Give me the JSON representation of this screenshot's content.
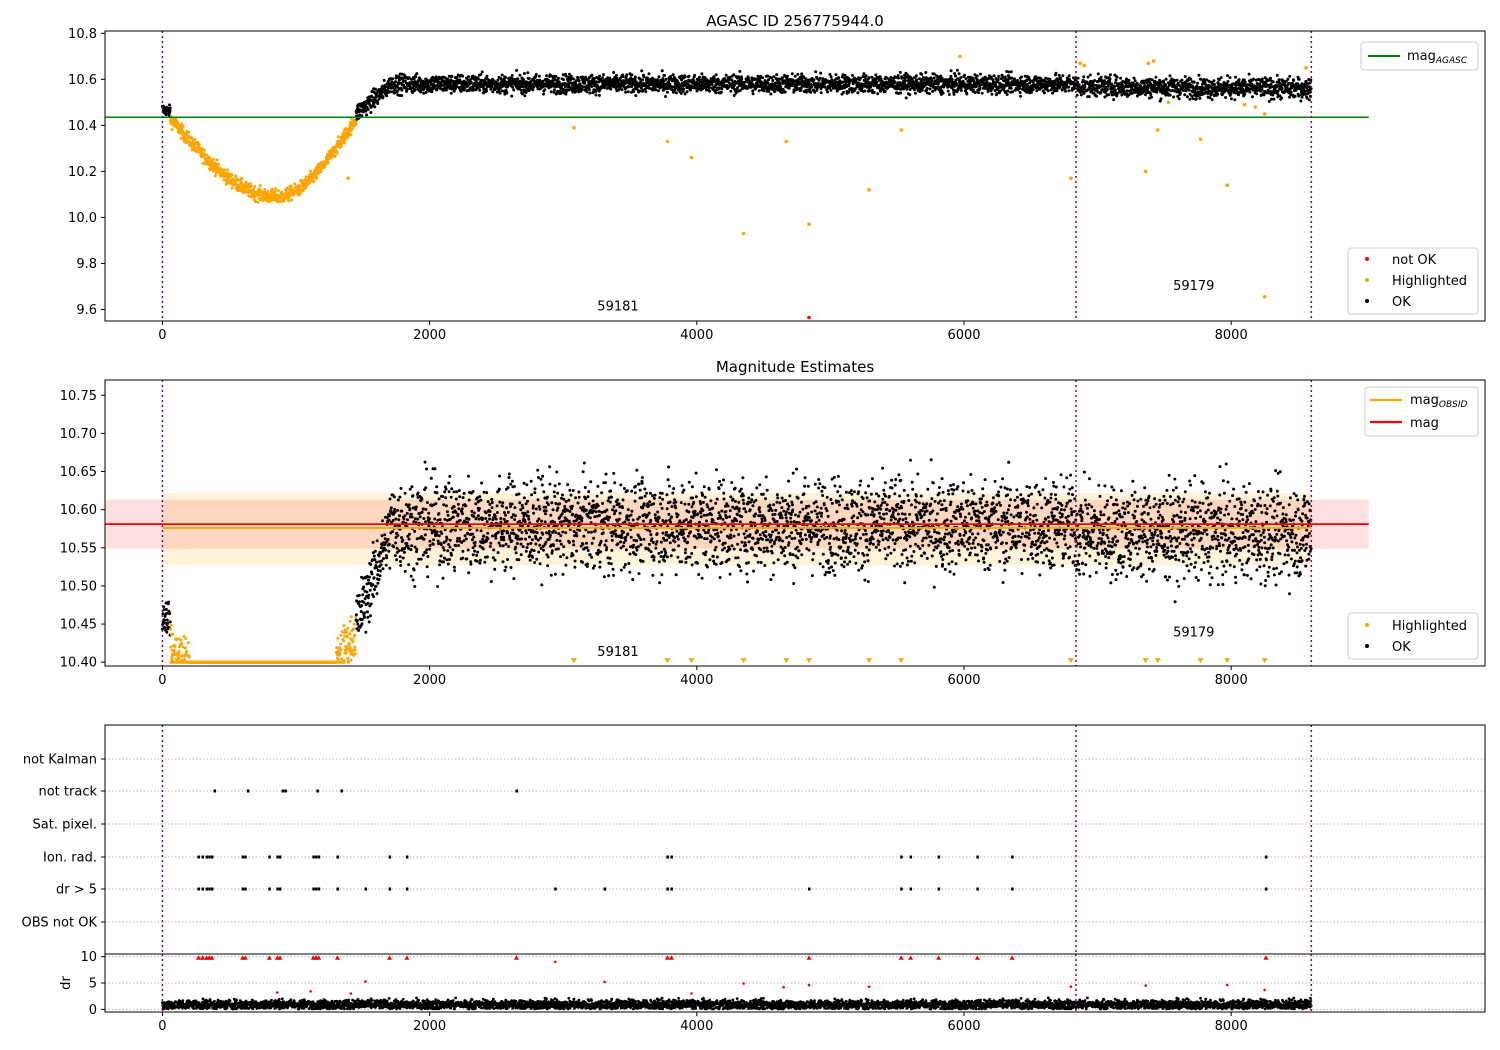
{
  "chart_data": [
    {
      "type": "scatter",
      "title": "AGASC ID 256775944.0",
      "xlim": [
        -430,
        9900
      ],
      "ylim": [
        9.55,
        10.81
      ],
      "xticks": [
        0,
        2000,
        4000,
        6000,
        8000
      ],
      "yticks": [
        9.6,
        9.8,
        10.0,
        10.2,
        10.4,
        10.6,
        10.8
      ],
      "vlines": [
        0,
        6838,
        8600
      ],
      "hline": {
        "name": "mag",
        "subscript": "AGASC",
        "value": 10.435,
        "x_end": 9030,
        "color": "#008000"
      },
      "obs_labels": [
        {
          "text": "59181",
          "x": 3410,
          "y": 9.595
        },
        {
          "text": "59179",
          "x": 7720,
          "y": 9.685
        }
      ],
      "legend_line": {
        "label": "mag",
        "sub": "AGASC"
      },
      "legend_points": [
        {
          "label": "not OK",
          "color": "#ff0000"
        },
        {
          "label": "Highlighted",
          "color": "#ffa500"
        },
        {
          "label": "OK",
          "color": "#000000"
        }
      ],
      "segments": [
        {
          "x0": 0,
          "x1": 60,
          "y0": 10.47,
          "y1": 10.46,
          "noise": 0.012,
          "color": "#000000"
        },
        {
          "x0": 60,
          "x1": 850,
          "y0": 10.43,
          "y1": 10.09,
          "noise": 0.015,
          "curve": "down",
          "color": "#ffa500"
        },
        {
          "x0": 850,
          "x1": 1450,
          "y0": 10.09,
          "y1": 10.43,
          "noise": 0.015,
          "curve": "up",
          "color": "#ffa500"
        },
        {
          "x0": 1450,
          "x1": 1700,
          "y0": 10.45,
          "y1": 10.57,
          "noise": 0.02,
          "color": "#000000"
        },
        {
          "x0": 1700,
          "x1": 6838,
          "y0": 10.58,
          "y1": 10.58,
          "noise": 0.02,
          "color": "#000000"
        },
        {
          "x0": 6838,
          "x1": 8600,
          "y0": 10.57,
          "y1": 10.56,
          "noise": 0.022,
          "color": "#000000"
        }
      ],
      "outliers": [
        {
          "x": 3080,
          "y": 10.39,
          "color": "#ffa500"
        },
        {
          "x": 3780,
          "y": 10.33,
          "color": "#ffa500"
        },
        {
          "x": 3960,
          "y": 10.26,
          "color": "#ffa500"
        },
        {
          "x": 4350,
          "y": 9.93,
          "color": "#ffa500"
        },
        {
          "x": 4670,
          "y": 10.33,
          "color": "#ffa500"
        },
        {
          "x": 4840,
          "y": 9.97,
          "color": "#ffa500"
        },
        {
          "x": 4840,
          "y": 9.565,
          "color": "#ff0000"
        },
        {
          "x": 5290,
          "y": 10.12,
          "color": "#ffa500"
        },
        {
          "x": 5530,
          "y": 10.38,
          "color": "#ffa500"
        },
        {
          "x": 1390,
          "y": 10.17,
          "color": "#ffa500"
        },
        {
          "x": 5970,
          "y": 10.7,
          "color": "#ffa500"
        },
        {
          "x": 6800,
          "y": 10.17,
          "color": "#ffa500"
        },
        {
          "x": 6870,
          "y": 10.67,
          "color": "#ffa500"
        },
        {
          "x": 6900,
          "y": 10.66,
          "color": "#ffa500"
        },
        {
          "x": 7360,
          "y": 10.2,
          "color": "#ffa500"
        },
        {
          "x": 7380,
          "y": 10.67,
          "color": "#ffa500"
        },
        {
          "x": 7420,
          "y": 10.68,
          "color": "#ffa500"
        },
        {
          "x": 7450,
          "y": 10.38,
          "color": "#ffa500"
        },
        {
          "x": 7530,
          "y": 10.5,
          "color": "#ffa500"
        },
        {
          "x": 7770,
          "y": 10.34,
          "color": "#ffa500"
        },
        {
          "x": 7970,
          "y": 10.14,
          "color": "#ffa500"
        },
        {
          "x": 8100,
          "y": 10.49,
          "color": "#ffa500"
        },
        {
          "x": 8180,
          "y": 10.48,
          "color": "#ffa500"
        },
        {
          "x": 8250,
          "y": 9.655,
          "color": "#ffa500"
        },
        {
          "x": 8250,
          "y": 10.45,
          "color": "#ffa500"
        },
        {
          "x": 8560,
          "y": 10.65,
          "color": "#ffa500"
        }
      ]
    },
    {
      "type": "scatter",
      "title": "Magnitude Estimates",
      "xlim": [
        -430,
        9900
      ],
      "ylim": [
        10.395,
        10.77
      ],
      "xticks": [
        0,
        2000,
        4000,
        6000,
        8000
      ],
      "yticks": [
        10.4,
        10.45,
        10.5,
        10.55,
        10.6,
        10.65,
        10.7,
        10.75
      ],
      "vlines": [
        0,
        6838,
        8600
      ],
      "mag_line": {
        "label": "mag",
        "value": 10.581,
        "band": [
          10.549,
          10.613
        ],
        "x_end": 9030,
        "color": "#ff0000"
      },
      "obsid_line": {
        "label": "mag",
        "sub": "OBSID",
        "value": 10.576,
        "band": [
          10.527,
          10.622
        ],
        "x0": 0,
        "x1": 8600,
        "color": "#ffa500"
      },
      "obs_labels": [
        {
          "text": "59181",
          "x": 3410,
          "y": 10.408
        },
        {
          "text": "59179",
          "x": 7720,
          "y": 10.434
        }
      ],
      "legend_points": [
        {
          "label": "Highlighted",
          "color": "#ffa500"
        },
        {
          "label": "OK",
          "color": "#000000"
        }
      ],
      "floor_y": 10.4,
      "down_markers_x": [
        3080,
        3780,
        3960,
        4350,
        4670,
        4840,
        5290,
        5530,
        6800,
        7360,
        7450,
        7770,
        7970,
        8250
      ]
    },
    {
      "type": "event-raster",
      "xlim": [
        -430,
        9900
      ],
      "xticks": [
        0,
        2000,
        4000,
        6000,
        8000
      ],
      "vlines": [
        0,
        6838,
        8600
      ],
      "rows": [
        "not Kalman",
        "not track",
        "Sat. pixel.",
        "Ion. rad.",
        "dr > 5",
        "OBS not OK"
      ],
      "events": {
        "not track": [
          390,
          640,
          900,
          920,
          1160,
          1340,
          2650
        ],
        "Ion. rad.": [
          270,
          300,
          330,
          350,
          370,
          600,
          620,
          800,
          860,
          880,
          1130,
          1150,
          1170,
          1310,
          1700,
          1830,
          3780,
          3810,
          5530,
          5600,
          5810,
          6100,
          6360,
          8260
        ],
        "dr > 5": [
          270,
          300,
          330,
          350,
          370,
          600,
          620,
          800,
          860,
          880,
          1130,
          1150,
          1170,
          1310,
          1520,
          1700,
          1830,
          2940,
          3310,
          3780,
          3810,
          4840,
          5530,
          5600,
          5810,
          6100,
          6360,
          8260
        ]
      }
    },
    {
      "type": "scatter",
      "ylabel": "dr",
      "xlim": [
        -430,
        9900
      ],
      "ylim": [
        -0.5,
        10.5
      ],
      "xticks": [
        0,
        2000,
        4000,
        6000,
        8000
      ],
      "xticklabels": [
        "0",
        "2000",
        "4000",
        "6000",
        "8000"
      ],
      "yticks": [
        0,
        5,
        10
      ],
      "vlines": [
        0,
        6838,
        8600
      ],
      "baseline": {
        "x0": 0,
        "x1": 8600,
        "mean": 0.9,
        "noise": 0.45,
        "color": "#000000"
      },
      "red_points": [
        {
          "x": 270,
          "y": 9.8
        },
        {
          "x": 300,
          "y": 9.8
        },
        {
          "x": 330,
          "y": 9.8
        },
        {
          "x": 350,
          "y": 9.8
        },
        {
          "x": 370,
          "y": 9.8
        },
        {
          "x": 600,
          "y": 9.8
        },
        {
          "x": 620,
          "y": 9.8
        },
        {
          "x": 800,
          "y": 9.8
        },
        {
          "x": 860,
          "y": 9.8
        },
        {
          "x": 880,
          "y": 9.8
        },
        {
          "x": 1130,
          "y": 9.8
        },
        {
          "x": 1150,
          "y": 9.8
        },
        {
          "x": 1170,
          "y": 9.8
        },
        {
          "x": 1310,
          "y": 9.8
        },
        {
          "x": 1700,
          "y": 9.8
        },
        {
          "x": 1830,
          "y": 9.8
        },
        {
          "x": 2650,
          "y": 9.8
        },
        {
          "x": 3780,
          "y": 9.8
        },
        {
          "x": 3810,
          "y": 9.8
        },
        {
          "x": 4840,
          "y": 9.8
        },
        {
          "x": 5530,
          "y": 9.8
        },
        {
          "x": 5600,
          "y": 9.8
        },
        {
          "x": 5810,
          "y": 9.8
        },
        {
          "x": 6100,
          "y": 9.8
        },
        {
          "x": 6360,
          "y": 9.8
        },
        {
          "x": 8260,
          "y": 9.8
        },
        {
          "x": 2940,
          "y": 9.0
        },
        {
          "x": 1520,
          "y": 5.3
        },
        {
          "x": 3310,
          "y": 5.2
        },
        {
          "x": 4350,
          "y": 4.9
        },
        {
          "x": 4840,
          "y": 4.6
        },
        {
          "x": 4650,
          "y": 4.2
        },
        {
          "x": 5290,
          "y": 4.3
        },
        {
          "x": 6800,
          "y": 4.3
        },
        {
          "x": 7360,
          "y": 4.5
        },
        {
          "x": 7970,
          "y": 4.6
        },
        {
          "x": 8250,
          "y": 3.7
        },
        {
          "x": 860,
          "y": 3.2
        },
        {
          "x": 1110,
          "y": 3.4
        },
        {
          "x": 1410,
          "y": 3.0
        },
        {
          "x": 3960,
          "y": 3.0
        }
      ]
    }
  ]
}
